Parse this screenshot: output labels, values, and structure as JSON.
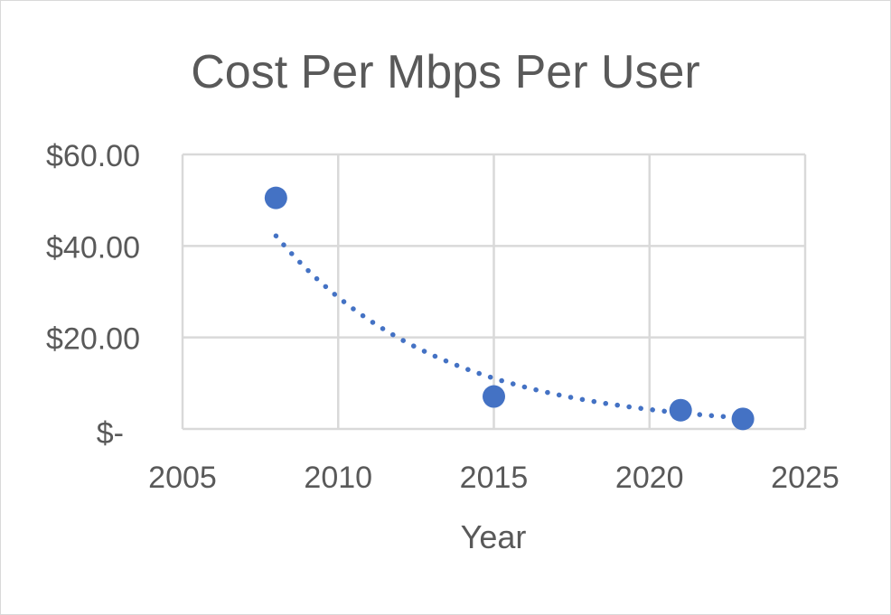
{
  "chart_data": {
    "type": "scatter",
    "title": "Cost Per Mbps Per User",
    "xlabel": "Year",
    "ylabel": "",
    "xlim": [
      2005,
      2025
    ],
    "ylim": [
      0,
      60
    ],
    "x_ticks": [
      2005,
      2010,
      2015,
      2020,
      2025
    ],
    "x_tick_labels": [
      "2005",
      "2010",
      "2015",
      "2020",
      "2025"
    ],
    "y_ticks": [
      0,
      20,
      40,
      60
    ],
    "y_tick_labels": [
      "$-",
      "$20.00",
      "$40.00",
      "$60.00"
    ],
    "grid": true,
    "legend": "none",
    "series": [
      {
        "name": "Cost Per Mbps Per User",
        "color": "#4472c4",
        "x": [
          2008,
          2015,
          2021,
          2023
        ],
        "y": [
          50.5,
          7.1,
          4.1,
          2.2
        ]
      }
    ],
    "trendline": {
      "type": "exponential",
      "style": "dotted",
      "color": "#4472c4",
      "x_range": [
        2008,
        2023
      ],
      "a": 42.2,
      "b": -0.191,
      "x0": 2008
    }
  }
}
